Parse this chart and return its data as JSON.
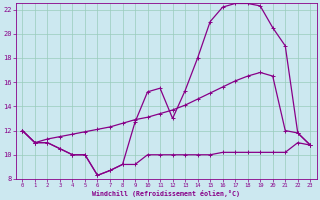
{
  "xlabel": "Windchill (Refroidissement éolien,°C)",
  "bg_color": "#cce8f0",
  "line_color": "#880088",
  "grid_color": "#99ccbb",
  "xlim": [
    -0.5,
    23.5
  ],
  "ylim": [
    8,
    22.5
  ],
  "xticks": [
    0,
    1,
    2,
    3,
    4,
    5,
    6,
    7,
    8,
    9,
    10,
    11,
    12,
    13,
    14,
    15,
    16,
    17,
    18,
    19,
    20,
    21,
    22,
    23
  ],
  "yticks": [
    8,
    10,
    12,
    14,
    16,
    18,
    20,
    22
  ],
  "curve1_x": [
    0,
    1,
    2,
    3,
    4,
    5,
    6,
    7,
    8,
    9,
    10,
    11,
    12,
    13,
    14,
    15,
    16,
    17,
    18,
    19,
    20,
    21,
    22,
    23
  ],
  "curve1_y": [
    12.0,
    11.0,
    11.0,
    10.5,
    10.0,
    10.0,
    8.3,
    8.7,
    9.2,
    9.2,
    10.0,
    10.0,
    10.0,
    10.0,
    10.0,
    10.0,
    10.2,
    10.2,
    10.2,
    10.2,
    10.2,
    10.2,
    11.0,
    10.8
  ],
  "curve2_x": [
    0,
    1,
    2,
    3,
    4,
    5,
    6,
    7,
    8,
    9,
    10,
    11,
    12,
    13,
    14,
    15,
    16,
    17,
    18,
    19,
    20,
    21,
    22,
    23
  ],
  "curve2_y": [
    12.0,
    11.0,
    11.0,
    10.5,
    10.0,
    10.0,
    8.3,
    8.7,
    9.2,
    12.7,
    15.2,
    15.5,
    13.0,
    15.3,
    18.0,
    21.0,
    22.2,
    22.5,
    22.5,
    22.3,
    20.5,
    19.0,
    11.8,
    10.8
  ],
  "curve3_x": [
    0,
    1,
    2,
    3,
    4,
    5,
    6,
    7,
    8,
    9,
    10,
    11,
    12,
    13,
    14,
    15,
    16,
    17,
    18,
    19,
    20,
    21,
    22,
    23
  ],
  "curve3_y": [
    12.0,
    11.0,
    11.3,
    11.5,
    11.7,
    11.9,
    12.1,
    12.3,
    12.6,
    12.9,
    13.1,
    13.4,
    13.7,
    14.1,
    14.6,
    15.1,
    15.6,
    16.1,
    16.5,
    16.8,
    16.5,
    12.0,
    11.8,
    10.8
  ]
}
